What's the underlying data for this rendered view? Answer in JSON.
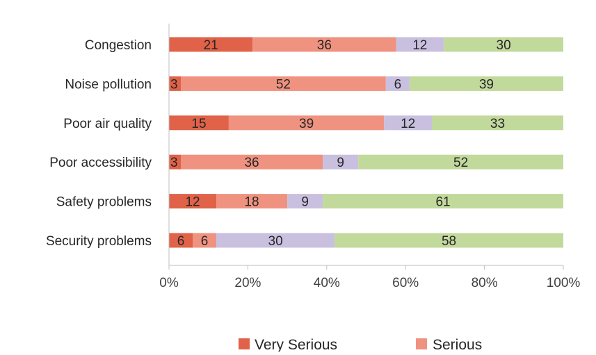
{
  "chart_data": {
    "type": "bar",
    "orientation": "horizontal",
    "stacked": true,
    "percent_stacked": true,
    "categories": [
      "Congestion",
      "Noise pollution",
      "Poor air quality",
      "Poor accessibility",
      "Safety problems",
      "Security problems"
    ],
    "series": [
      {
        "name": "Very Serious",
        "color": "#e06248",
        "values": [
          21,
          3,
          15,
          3,
          12,
          6
        ]
      },
      {
        "name": "Serious",
        "color": "#ef9280",
        "values": [
          36,
          52,
          39,
          36,
          18,
          6
        ]
      },
      {
        "name": "",
        "color": "#c9c0df",
        "values": [
          12,
          6,
          12,
          9,
          9,
          30
        ]
      },
      {
        "name": "",
        "color": "#c2d99c",
        "values": [
          30,
          39,
          33,
          52,
          61,
          58
        ]
      }
    ],
    "x_ticks": [
      "0%",
      "20%",
      "40%",
      "60%",
      "80%",
      "100%"
    ],
    "xlim": [
      0,
      100
    ],
    "grid": false,
    "legend_position": "bottom",
    "title": "",
    "xlabel": "",
    "ylabel": ""
  }
}
